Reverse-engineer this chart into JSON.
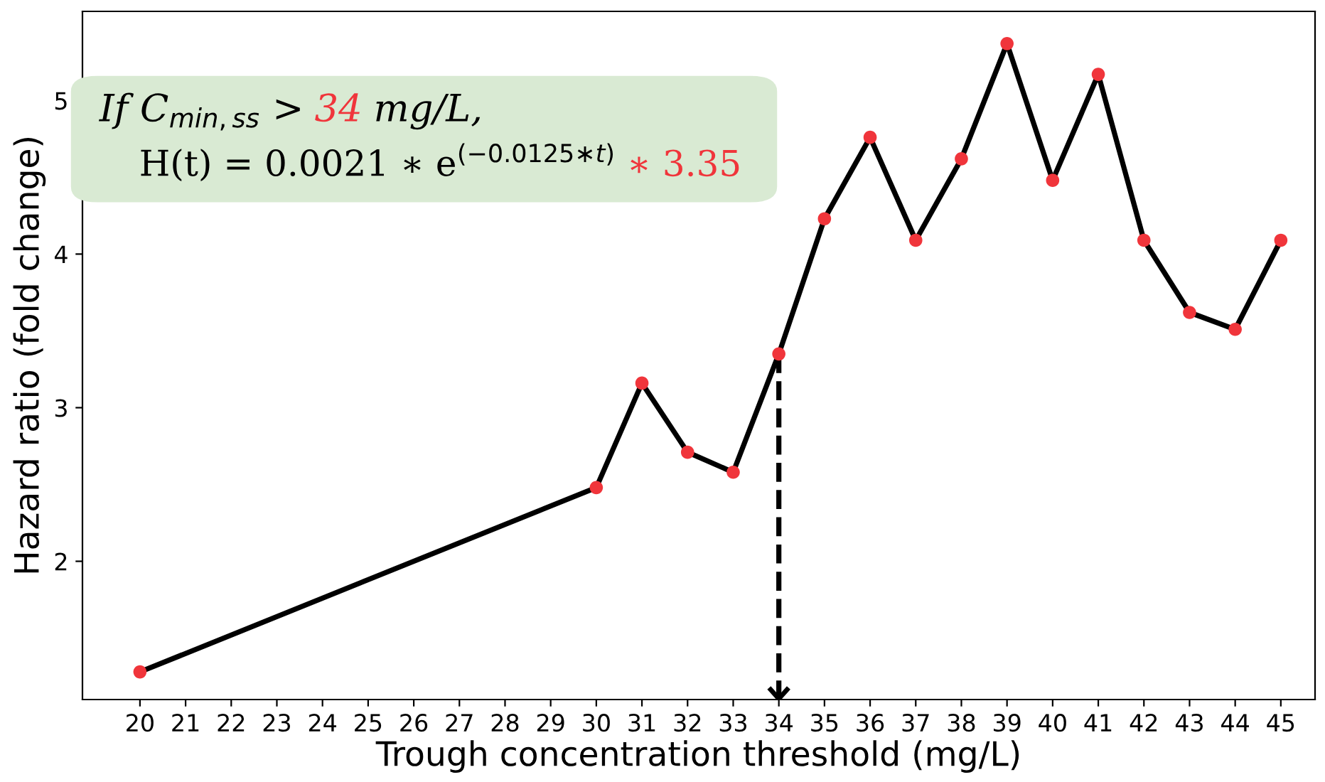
{
  "chart_data": {
    "type": "line",
    "xlabel": "Trough concentration threshold (mg/L)",
    "ylabel": "Hazard ratio (fold change)",
    "x": [
      20,
      30,
      31,
      32,
      33,
      34,
      35,
      36,
      37,
      38,
      39,
      40,
      41,
      42,
      43,
      44,
      45
    ],
    "series": [
      {
        "color": "#000000",
        "colors": [
          "#f0353b",
          "#f0353b",
          "#f0353b",
          "#f0353b",
          "#f0353b",
          "#f0353b",
          "#f0353b",
          "#f0353b",
          "#f0353b",
          "#f0353b",
          "#f0353b",
          "#f0353b",
          "#f0353b",
          "#f0353b",
          "#f0353b",
          "#f0353b",
          "#f0353b"
        ],
        "values": [
          1.28,
          2.48,
          3.16,
          2.71,
          2.58,
          3.35,
          4.23,
          4.76,
          4.09,
          4.62,
          5.37,
          4.48,
          5.17,
          4.09,
          3.62,
          3.51,
          4.09
        ]
      }
    ],
    "marker": "circle",
    "line_style": "solid",
    "grid": false,
    "legend": false,
    "xlim": [
      18.74,
      45.75
    ],
    "ylim": [
      1.1,
      5.58
    ],
    "xticks": [
      20,
      21,
      22,
      23,
      24,
      25,
      26,
      27,
      28,
      29,
      30,
      31,
      32,
      33,
      34,
      35,
      36,
      37,
      38,
      39,
      40,
      41,
      42,
      43,
      44,
      45
    ],
    "yticks": [
      2,
      3,
      4,
      5
    ],
    "ref_lines": [
      {
        "axis": "x",
        "value": 34,
        "line_style": "dashed",
        "color": "#000000"
      }
    ],
    "annotations": [
      "If C$_{min,ss}$ >",
      "34",
      "mg/L,",
      "H(t) = 0.0021 ∗ e$^{(−0.0125∗t)}$",
      "∗ 3.35"
    ]
  }
}
